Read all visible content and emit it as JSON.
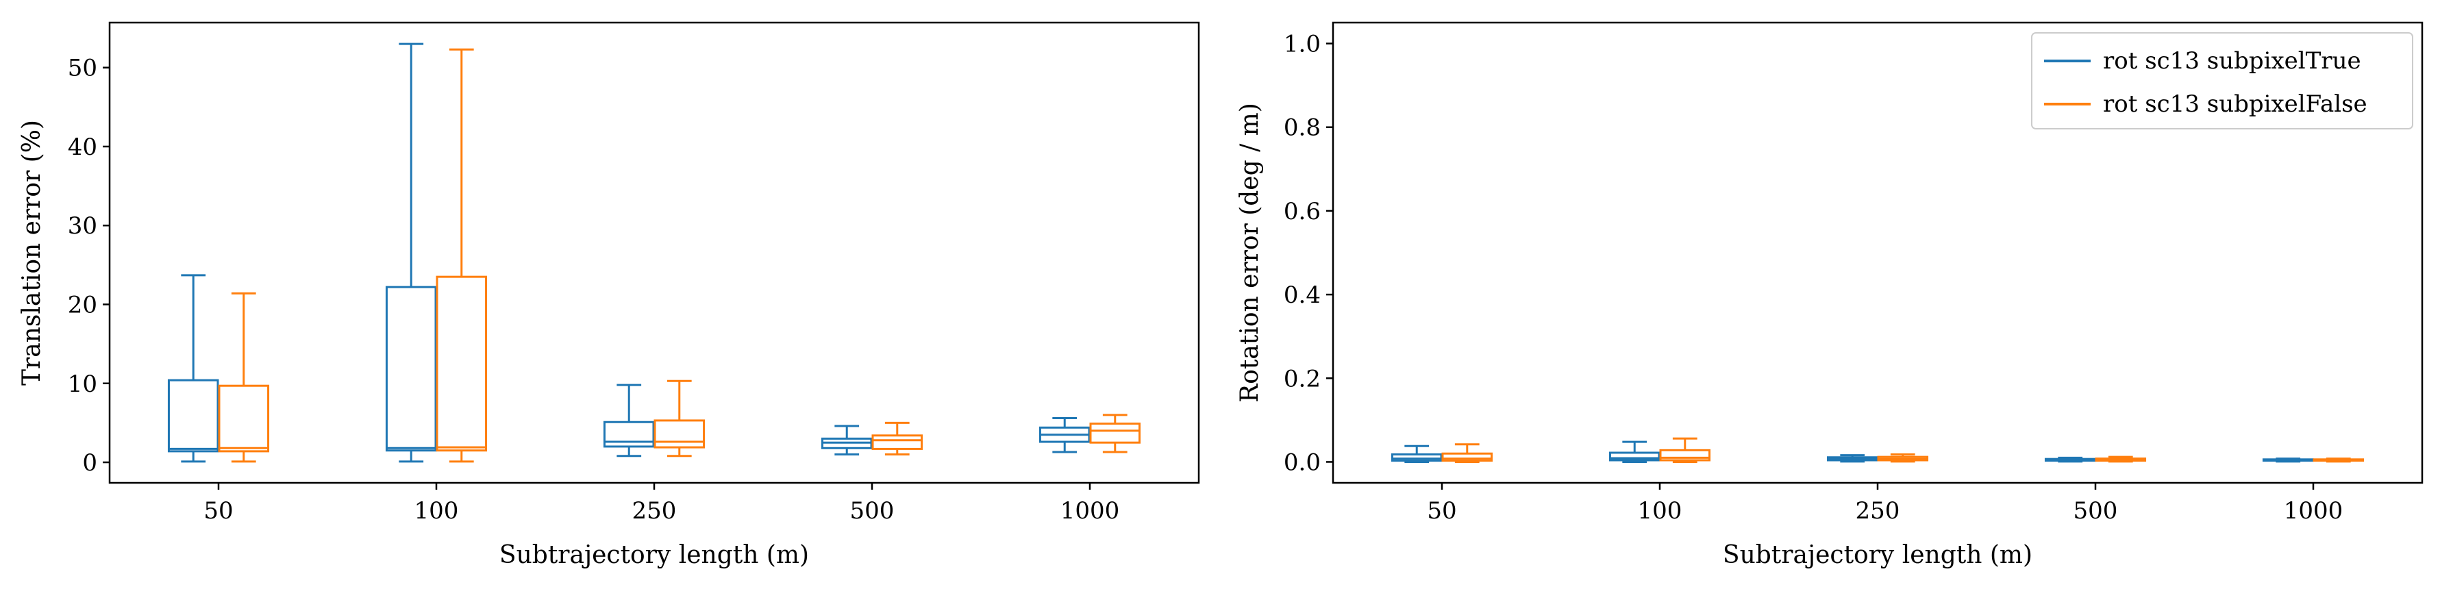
{
  "chart_data": [
    {
      "type": "box",
      "xlabel": "Subtrajectory length (m)",
      "ylabel": "Translation error (%)",
      "categories": [
        "50",
        "100",
        "250",
        "500",
        "1000"
      ],
      "ylim": [
        -2.6,
        55.7
      ],
      "yticks": [
        0,
        10,
        20,
        30,
        40,
        50
      ],
      "grid": false,
      "series": [
        {
          "name": "rot sc13 subpixelTrue",
          "color": "#1f77b4",
          "boxes": [
            {
              "whislo": 0.1,
              "q1": 1.4,
              "med": 1.7,
              "q3": 10.4,
              "whishi": 23.7
            },
            {
              "whislo": 0.1,
              "q1": 1.5,
              "med": 1.8,
              "q3": 22.2,
              "whishi": 53.0
            },
            {
              "whislo": 0.8,
              "q1": 2.0,
              "med": 2.6,
              "q3": 5.1,
              "whishi": 9.8
            },
            {
              "whislo": 1.0,
              "q1": 1.8,
              "med": 2.5,
              "q3": 3.0,
              "whishi": 4.6
            },
            {
              "whislo": 1.3,
              "q1": 2.6,
              "med": 3.5,
              "q3": 4.4,
              "whishi": 5.6
            }
          ]
        },
        {
          "name": "rot sc13 subpixelFalse",
          "color": "#ff7f0e",
          "boxes": [
            {
              "whislo": 0.1,
              "q1": 1.4,
              "med": 1.8,
              "q3": 9.7,
              "whishi": 21.4
            },
            {
              "whislo": 0.1,
              "q1": 1.5,
              "med": 1.9,
              "q3": 23.5,
              "whishi": 52.3
            },
            {
              "whislo": 0.8,
              "q1": 1.9,
              "med": 2.6,
              "q3": 5.3,
              "whishi": 10.3
            },
            {
              "whislo": 1.0,
              "q1": 1.7,
              "med": 2.8,
              "q3": 3.4,
              "whishi": 5.0
            },
            {
              "whislo": 1.3,
              "q1": 2.5,
              "med": 4.0,
              "q3": 4.9,
              "whishi": 6.0
            }
          ]
        }
      ]
    },
    {
      "type": "box",
      "xlabel": "Subtrajectory length (m)",
      "ylabel": "Rotation error (deg / m)",
      "categories": [
        "50",
        "100",
        "250",
        "500",
        "1000"
      ],
      "ylim": [
        -0.05,
        1.05
      ],
      "yticks": [
        0.0,
        0.2,
        0.4,
        0.6,
        0.8,
        1.0
      ],
      "ytick_labels": [
        "0.0",
        "0.2",
        "0.4",
        "0.6",
        "0.8",
        "1.0"
      ],
      "grid": false,
      "legend": {
        "position": "upper right",
        "entries": [
          "rot sc13 subpixelTrue",
          "rot sc13 subpixelFalse"
        ]
      },
      "series": [
        {
          "name": "rot sc13 subpixelTrue",
          "color": "#1f77b4",
          "boxes": [
            {
              "whislo": 0.0,
              "q1": 0.003,
              "med": 0.008,
              "q3": 0.018,
              "whishi": 0.038
            },
            {
              "whislo": 0.0,
              "q1": 0.004,
              "med": 0.009,
              "q3": 0.022,
              "whishi": 0.048
            },
            {
              "whislo": 0.001,
              "q1": 0.004,
              "med": 0.007,
              "q3": 0.011,
              "whishi": 0.016
            },
            {
              "whislo": 0.001,
              "q1": 0.003,
              "med": 0.005,
              "q3": 0.007,
              "whishi": 0.01
            },
            {
              "whislo": 0.001,
              "q1": 0.003,
              "med": 0.004,
              "q3": 0.006,
              "whishi": 0.008
            }
          ]
        },
        {
          "name": "rot sc13 subpixelFalse",
          "color": "#ff7f0e",
          "boxes": [
            {
              "whislo": 0.0,
              "q1": 0.003,
              "med": 0.008,
              "q3": 0.02,
              "whishi": 0.042
            },
            {
              "whislo": 0.0,
              "q1": 0.004,
              "med": 0.01,
              "q3": 0.028,
              "whishi": 0.056
            },
            {
              "whislo": 0.001,
              "q1": 0.004,
              "med": 0.007,
              "q3": 0.012,
              "whishi": 0.018
            },
            {
              "whislo": 0.001,
              "q1": 0.003,
              "med": 0.005,
              "q3": 0.008,
              "whishi": 0.012
            },
            {
              "whislo": 0.001,
              "q1": 0.003,
              "med": 0.004,
              "q3": 0.006,
              "whishi": 0.008
            }
          ]
        }
      ]
    }
  ]
}
